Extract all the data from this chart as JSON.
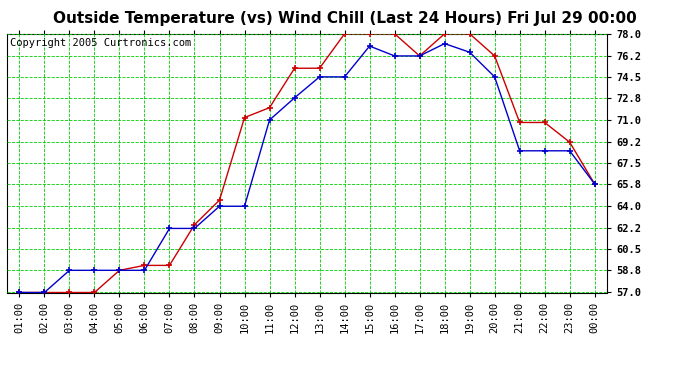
{
  "title": "Outside Temperature (vs) Wind Chill (Last 24 Hours) Fri Jul 29 00:00",
  "copyright": "Copyright 2005 Curtronics.com",
  "x_labels": [
    "01:00",
    "02:00",
    "03:00",
    "04:00",
    "05:00",
    "06:00",
    "07:00",
    "08:00",
    "09:00",
    "10:00",
    "11:00",
    "12:00",
    "13:00",
    "14:00",
    "15:00",
    "16:00",
    "17:00",
    "18:00",
    "19:00",
    "20:00",
    "21:00",
    "22:00",
    "23:00",
    "00:00"
  ],
  "outside_temp": [
    57.0,
    57.0,
    58.8,
    58.8,
    58.8,
    58.8,
    62.2,
    62.2,
    64.0,
    64.0,
    71.0,
    72.8,
    74.5,
    74.5,
    77.0,
    76.2,
    76.2,
    77.2,
    76.5,
    74.5,
    68.5,
    68.5,
    68.5,
    65.8
  ],
  "wind_chill": [
    57.0,
    57.0,
    57.0,
    57.0,
    58.8,
    59.2,
    59.2,
    62.5,
    64.5,
    71.2,
    72.0,
    75.2,
    75.2,
    78.0,
    78.0,
    78.0,
    76.2,
    78.0,
    78.0,
    76.2,
    70.8,
    70.8,
    69.2,
    65.8
  ],
  "temp_color": "#0000cc",
  "chill_color": "#cc0000",
  "bg_color": "#ffffff",
  "plot_bg": "#ffffff",
  "grid_color": "#00cc00",
  "ylim_min": 57.0,
  "ylim_max": 78.0,
  "yticks": [
    57.0,
    58.8,
    60.5,
    62.2,
    64.0,
    65.8,
    67.5,
    69.2,
    71.0,
    72.8,
    74.5,
    76.2,
    78.0
  ],
  "title_fontsize": 11,
  "tick_fontsize": 7.5,
  "copyright_fontsize": 7.5
}
